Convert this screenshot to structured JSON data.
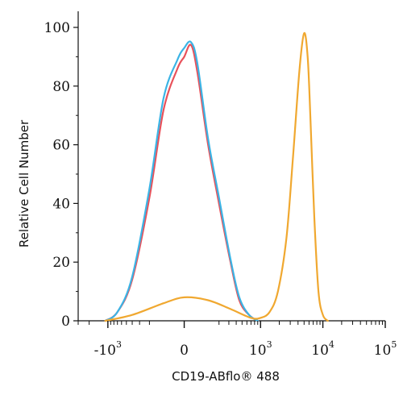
{
  "chart_data": {
    "type": "line",
    "title": "",
    "xlabel": "CD19-ABflo® 488",
    "ylabel": "Relative Cell Number",
    "x_scale": "biexponential",
    "xlim": [
      -3000,
      100000
    ],
    "ylim": [
      0,
      100
    ],
    "grid": false,
    "y_ticks": [
      {
        "value": 0,
        "label": "0"
      },
      {
        "value": 20,
        "label": "20"
      },
      {
        "value": 40,
        "label": "40"
      },
      {
        "value": 60,
        "label": "60"
      },
      {
        "value": 80,
        "label": "80"
      },
      {
        "value": 100,
        "label": "100"
      }
    ],
    "x_ticks": [
      {
        "value": -1000,
        "base": "-10",
        "exp": "3"
      },
      {
        "value": 0,
        "base": "0",
        "exp": ""
      },
      {
        "value": 1000,
        "base": "10",
        "exp": "3"
      },
      {
        "value": 10000,
        "base": "10",
        "exp": "4"
      },
      {
        "value": 100000,
        "base": "10",
        "exp": "5"
      }
    ],
    "series": [
      {
        "color": "#e8515a",
        "x": [
          -1100,
          -700,
          -400,
          -200,
          -100,
          -30,
          0,
          30,
          60,
          120,
          200,
          320,
          450,
          650,
          900
        ],
        "y": [
          0,
          3,
          14,
          42,
          72,
          86,
          90,
          94,
          85,
          60,
          40,
          20,
          7,
          2,
          0
        ]
      },
      {
        "color": "#3bb4e5",
        "x": [
          -1100,
          -700,
          -400,
          -200,
          -100,
          -30,
          0,
          30,
          60,
          120,
          200,
          320,
          450,
          650,
          900
        ],
        "y": [
          0,
          3,
          15,
          45,
          76,
          89,
          93,
          95,
          88,
          62,
          42,
          21,
          8,
          2,
          0
        ]
      },
      {
        "color": "#f0a830",
        "x": [
          -1100,
          -400,
          -100,
          0,
          120,
          320,
          700,
          1000,
          1400,
          1900,
          2600,
          3300,
          4200,
          5000,
          5700,
          6300,
          7300,
          8500,
          10000,
          12000
        ],
        "y": [
          0,
          2,
          6,
          8,
          7,
          4,
          1,
          1,
          3,
          10,
          28,
          55,
          85,
          98,
          90,
          70,
          35,
          10,
          2,
          0
        ]
      }
    ]
  }
}
